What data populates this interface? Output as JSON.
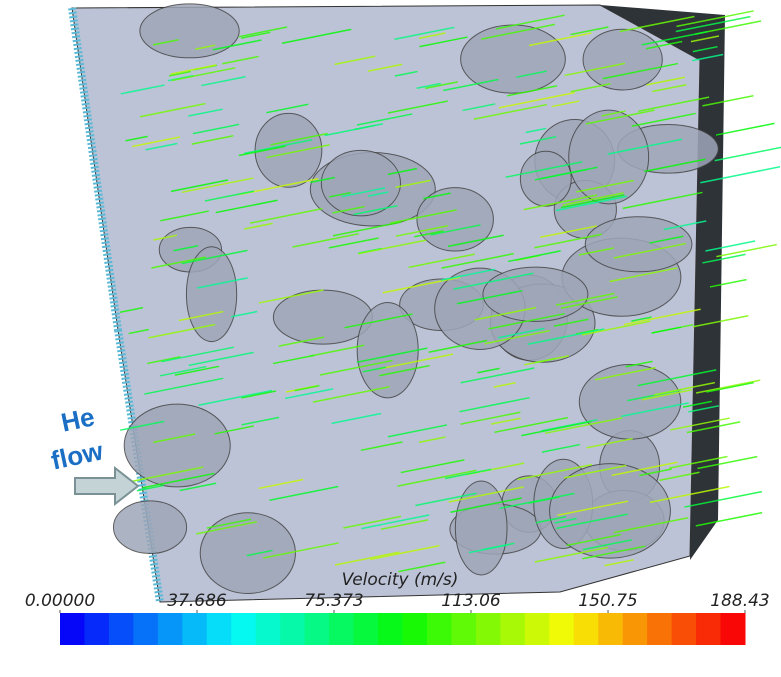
{
  "annotation": {
    "lines": [
      "He",
      "flow"
    ]
  },
  "colorbar": {
    "title": "Velocity (m/s)",
    "range": [
      0,
      188.43
    ],
    "ticks": [
      {
        "value": 0,
        "label": "0.00000"
      },
      37.686,
      75.373,
      113.06,
      150.75,
      188.43
    ]
  }
}
